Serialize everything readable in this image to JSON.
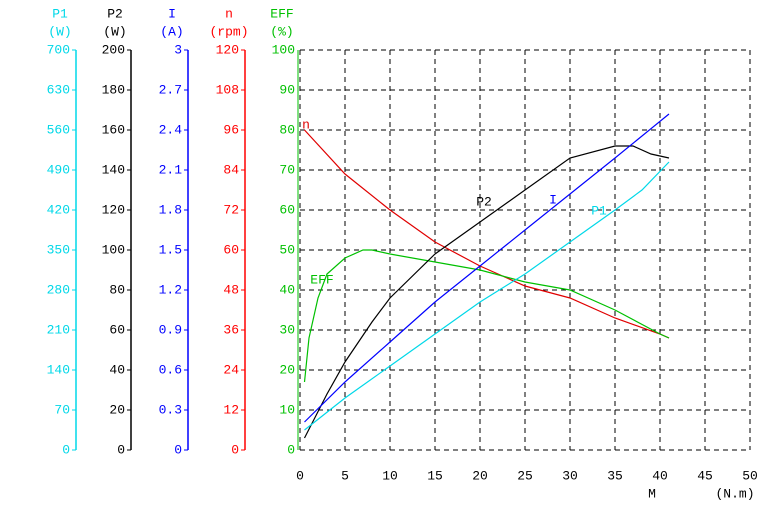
{
  "chart_data": {
    "type": "line",
    "grid": true,
    "x_label": "M",
    "x_unit": "(N.m)",
    "xlim": [
      0,
      50
    ],
    "xticks": [
      0,
      5,
      10,
      15,
      20,
      25,
      30,
      35,
      40,
      45,
      50
    ],
    "axes": [
      {
        "name": "P1",
        "unit": "(W)",
        "color": "#00d8e8",
        "ylim": [
          0,
          700
        ],
        "yticks": [
          0,
          70,
          140,
          210,
          280,
          350,
          420,
          490,
          560,
          630,
          700
        ]
      },
      {
        "name": "P2",
        "unit": "(W)",
        "color": "#000000",
        "ylim": [
          0,
          200
        ],
        "yticks": [
          0,
          20,
          40,
          60,
          80,
          100,
          120,
          140,
          160,
          180,
          200
        ]
      },
      {
        "name": "I",
        "unit": "(A)",
        "color": "#0000ff",
        "ylim": [
          0,
          3
        ],
        "yticks": [
          0,
          0.3,
          0.6,
          0.9,
          1.2,
          1.5,
          1.8,
          2.1,
          2.4,
          2.7,
          3
        ]
      },
      {
        "name": "n",
        "unit": "(rpm)",
        "color": "#ff0000",
        "ylim": [
          0,
          120
        ],
        "yticks": [
          0,
          12,
          24,
          36,
          48,
          60,
          72,
          84,
          96,
          108,
          120
        ]
      },
      {
        "name": "EFF",
        "unit": "(%)",
        "color": "#00c000",
        "ylim": [
          0,
          100
        ],
        "yticks": [
          0,
          10,
          20,
          30,
          40,
          50,
          60,
          70,
          80,
          90,
          100
        ]
      }
    ],
    "series": [
      {
        "name": "n",
        "axis": "n",
        "color": "#e00000",
        "x": [
          0.5,
          5,
          10,
          15,
          20,
          25,
          30,
          35,
          40,
          41
        ],
        "values": [
          96,
          82.8,
          72,
          62.4,
          55.2,
          49.2,
          45.6,
          39.6,
          34.8,
          33.6
        ]
      },
      {
        "name": "EFF",
        "axis": "EFF",
        "color": "#00c000",
        "x": [
          0.5,
          1,
          2,
          3,
          5,
          7,
          8,
          10,
          15,
          20,
          25,
          30,
          35,
          40,
          41
        ],
        "values": [
          17,
          28,
          38,
          44,
          48,
          50,
          50,
          49,
          47,
          45,
          42,
          40,
          35,
          29,
          28
        ]
      },
      {
        "name": "P2",
        "axis": "P2",
        "color": "#000000",
        "x": [
          0.5,
          3,
          5,
          8,
          10,
          15,
          20,
          25,
          30,
          35,
          37,
          39,
          41
        ],
        "values": [
          6,
          28,
          44,
          64,
          76,
          98,
          114,
          130,
          146,
          152,
          152,
          148,
          146
        ]
      },
      {
        "name": "I",
        "axis": "I",
        "color": "#0000ff",
        "x": [
          0.5,
          5,
          10,
          15,
          20,
          25,
          30,
          35,
          41
        ],
        "values": [
          0.21,
          0.51,
          0.81,
          1.11,
          1.38,
          1.65,
          1.92,
          2.19,
          2.52
        ]
      },
      {
        "name": "P1",
        "axis": "P1",
        "color": "#00d8e8",
        "x": [
          0.5,
          5,
          10,
          15,
          20,
          25,
          30,
          35,
          38,
          41
        ],
        "values": [
          35,
          91,
          147,
          203,
          259,
          308,
          364,
          420,
          455,
          504
        ]
      }
    ]
  }
}
